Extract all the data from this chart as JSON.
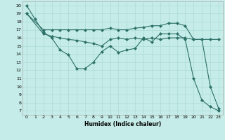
{
  "xlabel": "Humidex (Indice chaleur)",
  "bg_color": "#c5ece8",
  "grid_color": "#b0ddd8",
  "line_color": "#2d7068",
  "x_ticks": [
    0,
    1,
    2,
    3,
    4,
    5,
    6,
    7,
    8,
    9,
    10,
    11,
    12,
    13,
    14,
    15,
    16,
    17,
    18,
    19,
    20,
    21,
    22,
    23
  ],
  "ylim": [
    6.5,
    20.5
  ],
  "xlim": [
    -0.5,
    23.5
  ],
  "yticks": [
    7,
    8,
    9,
    10,
    11,
    12,
    13,
    14,
    15,
    16,
    17,
    18,
    19,
    20
  ],
  "line1_x": [
    0,
    1,
    2,
    3,
    4,
    5,
    6,
    7,
    8,
    9,
    10,
    11,
    12,
    13,
    14,
    15,
    16,
    17,
    18,
    19,
    20,
    21,
    22,
    23
  ],
  "line1_y": [
    20.0,
    18.3,
    16.7,
    16.0,
    14.5,
    13.9,
    12.2,
    12.2,
    13.0,
    14.3,
    15.0,
    14.2,
    14.5,
    14.7,
    16.0,
    15.5,
    16.5,
    16.5,
    16.5,
    15.8,
    11.0,
    8.3,
    7.5,
    7.0
  ],
  "line2_x": [
    0,
    2,
    3,
    4,
    5,
    6,
    7,
    8,
    9,
    10,
    11,
    12,
    13,
    14,
    15,
    16,
    17,
    18,
    19,
    20,
    21,
    22,
    23
  ],
  "line2_y": [
    19.0,
    17.0,
    17.0,
    17.0,
    17.0,
    17.0,
    17.0,
    17.0,
    17.0,
    17.2,
    17.0,
    17.0,
    17.2,
    17.3,
    17.5,
    17.5,
    17.8,
    17.8,
    17.5,
    15.8,
    15.8,
    15.8,
    15.8
  ],
  "line3_x": [
    0,
    2,
    3,
    4,
    5,
    6,
    7,
    8,
    9,
    10,
    11,
    12,
    13,
    14,
    15,
    16,
    17,
    18,
    19,
    20,
    21,
    22,
    23
  ],
  "line3_y": [
    19.0,
    16.5,
    16.2,
    16.0,
    15.8,
    15.7,
    15.5,
    15.3,
    15.0,
    15.8,
    16.0,
    15.8,
    16.0,
    15.8,
    16.0,
    15.8,
    16.0,
    16.0,
    16.0,
    15.8,
    15.8,
    10.0,
    7.3
  ]
}
